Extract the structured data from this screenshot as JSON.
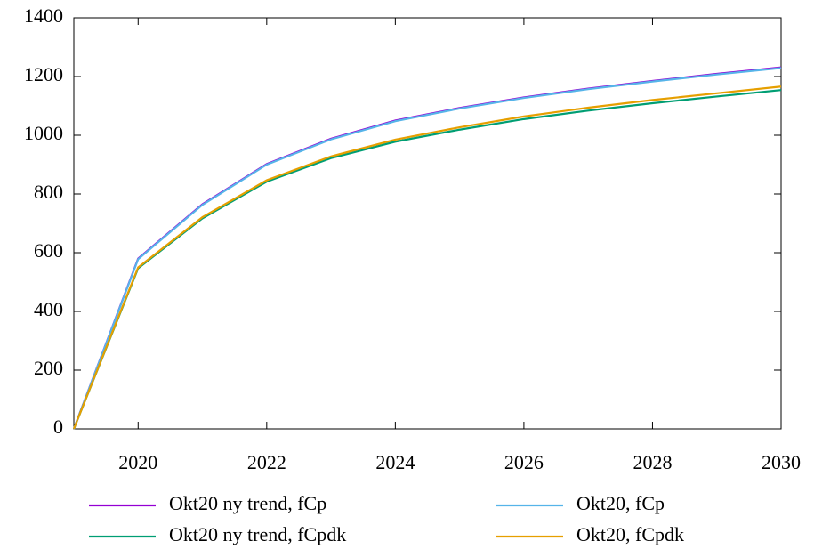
{
  "chart_data": {
    "type": "line",
    "x": [
      2019,
      2020,
      2021,
      2022,
      2023,
      2024,
      2025,
      2026,
      2027,
      2028,
      2029,
      2030
    ],
    "xlim": [
      2019,
      2030
    ],
    "xticks": [
      2020,
      2022,
      2024,
      2026,
      2028,
      2030
    ],
    "ylim": [
      0,
      1400
    ],
    "yticks": [
      0,
      200,
      400,
      600,
      800,
      1000,
      1200,
      1400
    ],
    "legend": "bottom",
    "series": [
      {
        "name": "Okt20 ny trend, fCp",
        "color": "#9400d3",
        "values": [
          0,
          580,
          765,
          902,
          988,
          1050,
          1093,
          1129,
          1159,
          1185,
          1209,
          1231
        ]
      },
      {
        "name": "Okt20, fCp",
        "color": "#56b4e9",
        "values": [
          0,
          578,
          763,
          900,
          986,
          1048,
          1091,
          1127,
          1157,
          1183,
          1207,
          1229
        ]
      },
      {
        "name": "Okt20 ny trend, fCpdk",
        "color": "#009e73",
        "values": [
          0,
          547,
          717,
          842,
          922,
          978,
          1019,
          1055,
          1084,
          1109,
          1132,
          1154
        ]
      },
      {
        "name": "Okt20, fCpdk",
        "color": "#e69f00",
        "values": [
          0,
          550,
          721,
          847,
          928,
          985,
          1027,
          1064,
          1094,
          1120,
          1143,
          1166
        ]
      }
    ]
  }
}
